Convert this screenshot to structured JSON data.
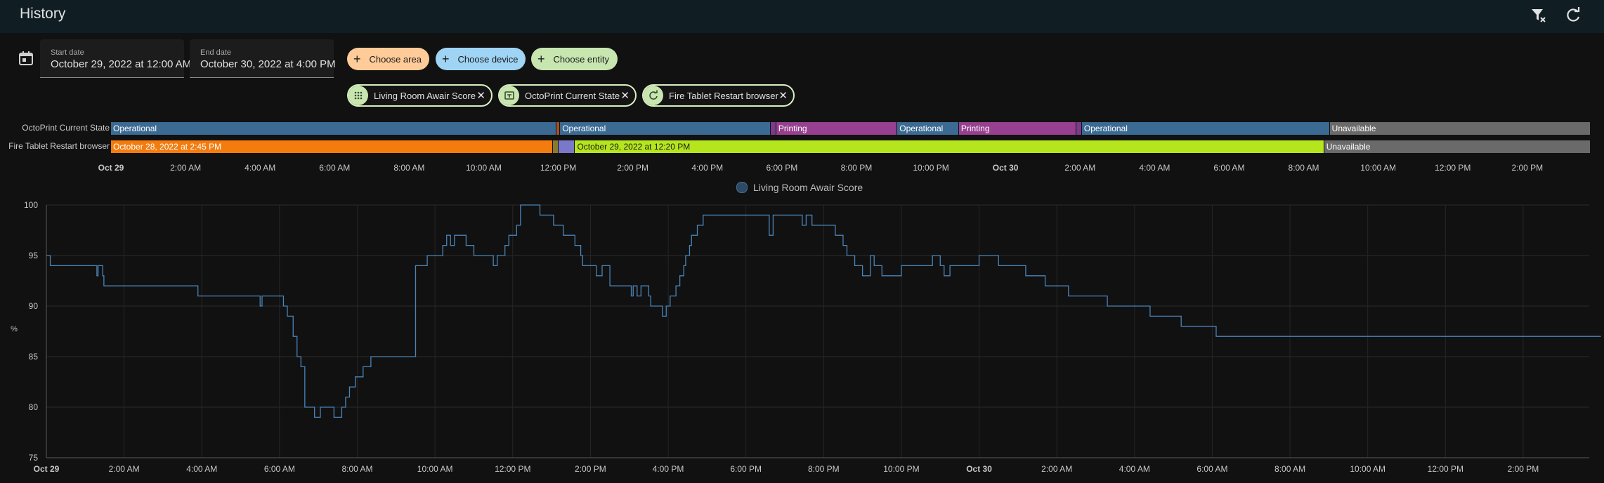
{
  "app": {
    "title": "History"
  },
  "toolbar": {
    "clear_filter_icon": "filter-remove-icon",
    "refresh_icon": "refresh-icon"
  },
  "dates": {
    "start_label": "Start date",
    "start_value": "October 29, 2022 at 12:00 AM",
    "end_label": "End date",
    "end_value": "October 30, 2022 at 4:00 PM"
  },
  "pickers": {
    "area": {
      "label": "Choose area",
      "color": "#ffcc99"
    },
    "device": {
      "label": "Choose device",
      "color": "#9fd4f5"
    },
    "entity": {
      "label": "Choose entity",
      "color": "#c8e6b0"
    }
  },
  "selected": [
    {
      "label": "Living Room Awair Score",
      "icon": "gauge-icon"
    },
    {
      "label": "OctoPrint Current State",
      "icon": "printer-3d-icon"
    },
    {
      "label": "Fire Tablet Restart browser",
      "icon": "restart-icon"
    }
  ],
  "timeline": {
    "rows": [
      {
        "name": "OctoPrint Current State",
        "segments": [
          {
            "start": 0,
            "end": 11.95,
            "state": "Operational",
            "color": "#3b6a93"
          },
          {
            "start": 11.95,
            "end": 12.05,
            "state": "",
            "color": "#a0522d"
          },
          {
            "start": 12.05,
            "end": 17.7,
            "state": "Operational",
            "color": "#3b6a93"
          },
          {
            "start": 17.7,
            "end": 17.85,
            "state": "",
            "color": "#7a3c8a"
          },
          {
            "start": 17.85,
            "end": 21.1,
            "state": "Printing",
            "color": "#97408f"
          },
          {
            "start": 21.1,
            "end": 22.75,
            "state": "Operational",
            "color": "#3b6a93"
          },
          {
            "start": 22.75,
            "end": 25.9,
            "state": "Printing",
            "color": "#97408f"
          },
          {
            "start": 25.9,
            "end": 26.05,
            "state": "",
            "color": "#7a3c8a"
          },
          {
            "start": 26.05,
            "end": 32.7,
            "state": "Operational",
            "color": "#3b6a93"
          },
          {
            "start": 32.7,
            "end": 40,
            "state": "Unavailable",
            "color": "#6a6a6a"
          }
        ]
      },
      {
        "name": "Fire Tablet Restart browser",
        "segments": [
          {
            "start": 0,
            "end": 11.85,
            "state": "October 28, 2022 at 2:45 PM",
            "color": "#f47c0e"
          },
          {
            "start": 11.85,
            "end": 12.0,
            "state": "",
            "color": "#8a7a2a"
          },
          {
            "start": 12.0,
            "end": 12.45,
            "state": "",
            "color": "#7a78c8"
          },
          {
            "start": 12.45,
            "end": 32.55,
            "state": "October 29, 2022 at 12:20 PM",
            "color": "#b5e61d"
          },
          {
            "start": 32.55,
            "end": 40,
            "state": "Unavailable",
            "color": "#6a6a6a"
          }
        ]
      }
    ],
    "ticks": [
      "Oct 29",
      "2:00 AM",
      "4:00 AM",
      "6:00 AM",
      "8:00 AM",
      "10:00 AM",
      "12:00 PM",
      "2:00 PM",
      "4:00 PM",
      "6:00 PM",
      "8:00 PM",
      "10:00 PM",
      "Oct 30",
      "2:00 AM",
      "4:00 AM",
      "6:00 AM",
      "8:00 AM",
      "10:00 AM",
      "12:00 PM",
      "2:00 PM"
    ]
  },
  "chart_data": {
    "type": "line",
    "series": [
      {
        "name": "Living Room Awair Score",
        "color": "#4a84b8",
        "x": [
          0,
          0.1,
          0.3,
          1.3,
          1.33,
          1.45,
          1.48,
          2.5,
          3.9,
          5.5,
          5.55,
          5.7,
          6.1,
          6.2,
          6.35,
          6.45,
          6.55,
          6.65,
          6.9,
          7.05,
          7.15,
          7.4,
          7.6,
          7.7,
          7.8,
          7.95,
          8.05,
          8.15,
          8.35,
          8.6,
          8.8,
          9.0,
          9.2,
          9.5,
          9.8,
          10.2,
          10.3,
          10.4,
          10.5,
          10.6,
          10.8,
          11.0,
          11.2,
          11.5,
          11.6,
          11.8,
          11.9,
          12.05,
          12.1,
          12.2,
          12.3,
          12.35,
          12.5,
          12.7,
          12.9,
          13.05,
          13.3,
          13.6,
          13.75,
          13.8,
          14.15,
          14.3,
          14.5,
          14.7,
          15.0,
          15.05,
          15.1,
          15.2,
          15.3,
          15.4,
          15.5,
          15.55,
          15.65,
          15.75,
          15.85,
          15.95,
          16.05,
          16.2,
          16.3,
          16.4,
          16.45,
          16.55,
          16.6,
          16.75,
          16.9,
          17.2,
          17.5,
          17.8,
          18.0,
          18.3,
          18.6,
          18.7,
          18.9,
          19.0,
          19.15,
          19.3,
          19.4,
          19.45,
          19.55,
          19.7,
          20.05,
          20.3,
          20.5,
          20.6,
          20.8,
          21.0,
          21.2,
          21.3,
          21.5,
          21.7,
          22.0,
          22.35,
          22.5,
          22.8,
          23.0,
          23.1,
          23.25,
          23.55,
          24.0,
          24.5,
          24.55,
          24.7,
          25.0,
          25.2,
          25.4,
          25.7,
          26.3,
          26.8,
          27.3,
          28.4,
          29.2,
          30.1,
          30.8,
          31.7,
          40
        ],
        "y": [
          95,
          94,
          94,
          93,
          94,
          93,
          92,
          92,
          91,
          90,
          91,
          91,
          90,
          89,
          87,
          85,
          84,
          80,
          79,
          80,
          80,
          79,
          80,
          81,
          82,
          83,
          83,
          84,
          85,
          85,
          85,
          85,
          85,
          94,
          95,
          96,
          97,
          96,
          97,
          97,
          96,
          95,
          95,
          94,
          95,
          96,
          97,
          97,
          98,
          100,
          100,
          100,
          100,
          99,
          99,
          98,
          97,
          96,
          95,
          94,
          93,
          94,
          92,
          92,
          92,
          91,
          92,
          91,
          92,
          92,
          91,
          90,
          90,
          90,
          89,
          90,
          91,
          92,
          93,
          94,
          95,
          96,
          97,
          98,
          99,
          99,
          99,
          99,
          99,
          99,
          97,
          99,
          99,
          99,
          99,
          99,
          99,
          98,
          99,
          98,
          98,
          97,
          96,
          95,
          94,
          93,
          95,
          94,
          93,
          93,
          94,
          94,
          94,
          95,
          94,
          93,
          94,
          94,
          95,
          94,
          94,
          94,
          94,
          93,
          93,
          92,
          91,
          91,
          90,
          89,
          88,
          87,
          87,
          87,
          87
        ]
      }
    ],
    "x_ticks": [
      "Oct 29",
      "2:00 AM",
      "4:00 AM",
      "6:00 AM",
      "8:00 AM",
      "10:00 AM",
      "12:00 PM",
      "2:00 PM",
      "4:00 PM",
      "6:00 PM",
      "8:00 PM",
      "10:00 PM",
      "Oct 30",
      "2:00 AM",
      "4:00 AM",
      "6:00 AM",
      "8:00 AM",
      "10:00 AM",
      "12:00 PM",
      "2:00 PM"
    ],
    "xlim": [
      0,
      39.7
    ],
    "ylim": [
      75,
      100
    ],
    "y_ticks": [
      75,
      80,
      85,
      90,
      95,
      100
    ],
    "ylabel": "%",
    "grid": true,
    "legend": "top-center"
  }
}
